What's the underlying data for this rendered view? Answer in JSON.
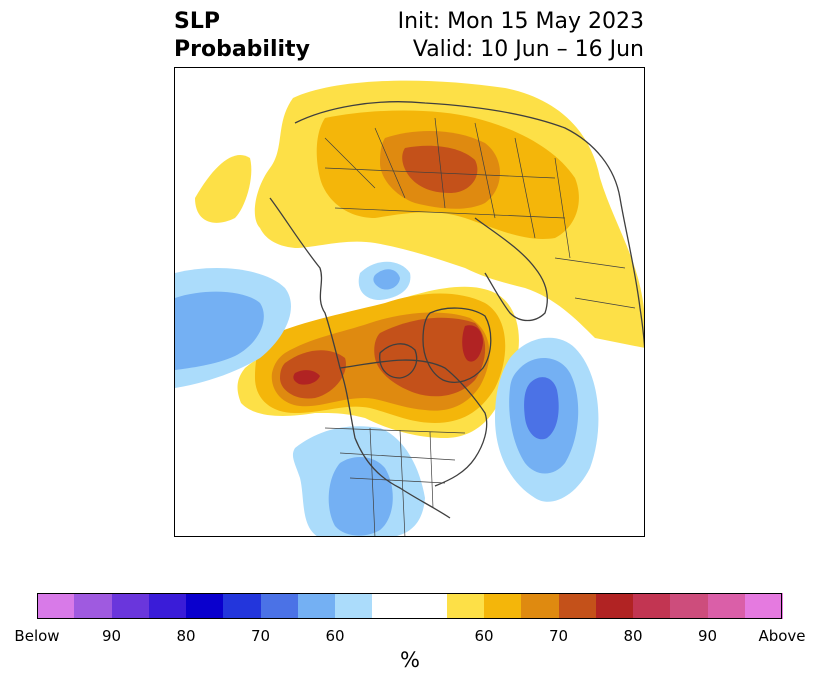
{
  "header": {
    "variable": "SLP",
    "product": "Probability",
    "init": "Init: Mon 15 May 2023",
    "valid": "Valid: 10 Jun – 16 Jun"
  },
  "colorbar": {
    "unit_label": "%",
    "colors": [
      "#d87ae8",
      "#9f5ae0",
      "#6a36dc",
      "#3a1cd8",
      "#0a00cd",
      "#2336dc",
      "#4b72e6",
      "#74b0f3",
      "#abdcfb",
      "#ffffff",
      "#ffffff",
      "#fde047",
      "#f4b60a",
      "#df8a10",
      "#c4511a",
      "#b12323",
      "#c23552",
      "#cd4d7c",
      "#da5fa8",
      "#e57ae0"
    ],
    "tick_labels": [
      "Below",
      "90",
      "80",
      "70",
      "60",
      "60",
      "70",
      "80",
      "90",
      "Above"
    ]
  },
  "map": {
    "colors": {
      "above_60": "#fde047",
      "above_65": "#f4b60a",
      "above_70": "#df8a10",
      "above_75": "#c4511a",
      "above_80": "#b12323",
      "below_60": "#abdcfb",
      "below_65": "#74b0f3",
      "below_70": "#4b72e6"
    }
  }
}
